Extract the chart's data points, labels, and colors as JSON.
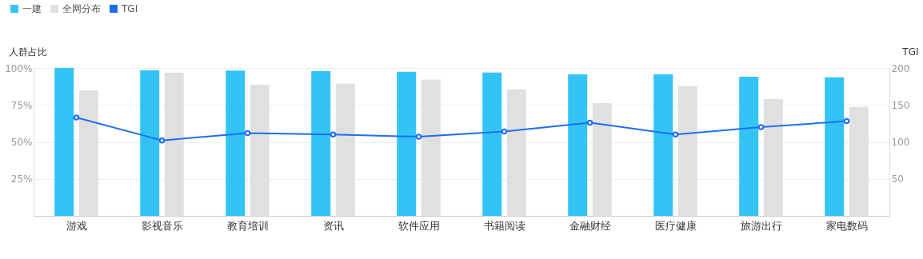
{
  "chart_data": {
    "type": "bar",
    "categories": [
      "游戏",
      "影视音乐",
      "教育培训",
      "资讯",
      "软件应用",
      "书籍阅读",
      "金融财经",
      "医疗健康",
      "旅游出行",
      "家电数码"
    ],
    "series": [
      {
        "name": "一建",
        "color": "#33c4f5",
        "values": [
          100,
          98.4,
          98.3,
          97.9,
          97.5,
          96.9,
          95.7,
          95.7,
          94.0,
          93.6
        ]
      },
      {
        "name": "全网分布",
        "color": "#e0e0e0",
        "values": [
          84.7,
          96.7,
          88.6,
          89.5,
          92.1,
          85.6,
          76.2,
          87.7,
          78.9,
          73.7
        ]
      },
      {
        "name": "TGI",
        "color": "#1e6ef0",
        "type": "line",
        "axis": "y2",
        "marker": "circle",
        "values": [
          133,
          102,
          112,
          110,
          107,
          114,
          126,
          110,
          120,
          128
        ]
      }
    ],
    "ylabel": "人群占比",
    "y2label": "TGI",
    "ylim": [
      0,
      100
    ],
    "yticks": [
      {
        "value": 25,
        "label": "25%"
      },
      {
        "value": 50,
        "label": "50%"
      },
      {
        "value": 75,
        "label": "75%"
      },
      {
        "value": 100,
        "label": "100%"
      }
    ],
    "y2lim": [
      0,
      200
    ],
    "y2ticks": [
      50,
      100,
      150,
      200
    ],
    "grid": "y",
    "legend": "top left"
  }
}
